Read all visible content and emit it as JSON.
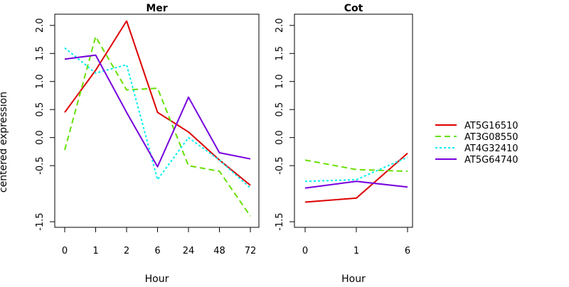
{
  "figure": {
    "ylabel": "centered expression",
    "legend_placement": "right"
  },
  "chart_data": [
    {
      "type": "line",
      "title": "Mer",
      "xlabel": "Hour",
      "ylabel": "centered expression",
      "categories": [
        "0",
        "1",
        "2",
        "6",
        "24",
        "48",
        "72"
      ],
      "ylim": [
        -1.6,
        2.2
      ],
      "yticks": [
        "-1.5",
        "-0.5",
        "0.0",
        "0.5",
        "1.0",
        "1.5",
        "2.0"
      ],
      "ytick_values": [
        -1.5,
        -0.5,
        0.0,
        0.5,
        1.0,
        1.5,
        2.0
      ],
      "grid": false,
      "series": [
        {
          "name": "AT5G16510",
          "values": [
            0.45,
            1.2,
            2.08,
            0.45,
            0.1,
            -0.4,
            -0.85
          ]
        },
        {
          "name": "AT3G08550",
          "values": [
            -0.22,
            1.8,
            0.85,
            0.88,
            -0.5,
            -0.6,
            -1.4
          ]
        },
        {
          "name": "AT4G32410",
          "values": [
            1.6,
            1.15,
            1.3,
            -0.75,
            0.0,
            -0.4,
            -0.9
          ]
        },
        {
          "name": "AT5G64740",
          "values": [
            1.4,
            1.47,
            0.45,
            -0.52,
            0.72,
            -0.27,
            -0.38
          ]
        }
      ]
    },
    {
      "type": "line",
      "title": "Cot",
      "xlabel": "Hour",
      "categories": [
        "0",
        "1",
        "6"
      ],
      "ylim": [
        -1.6,
        2.2
      ],
      "yticks": [
        "-1.5",
        "-0.5",
        "0.0",
        "0.5",
        "1.0",
        "1.5",
        "2.0"
      ],
      "ytick_values": [
        -1.5,
        -0.5,
        0.0,
        0.5,
        1.0,
        1.5,
        2.0
      ],
      "grid": false,
      "series": [
        {
          "name": "AT5G16510",
          "values": [
            -1.15,
            -1.08,
            -0.28
          ]
        },
        {
          "name": "AT3G08550",
          "values": [
            -0.4,
            -0.57,
            -0.6
          ]
        },
        {
          "name": "AT4G32410",
          "values": [
            -0.78,
            -0.75,
            -0.35
          ]
        },
        {
          "name": "AT5G64740",
          "values": [
            -0.9,
            -0.78,
            -0.88
          ]
        }
      ]
    }
  ],
  "legend": {
    "placement": "right",
    "entries": [
      {
        "name": "AT5G16510",
        "color": "#dd0000",
        "dash": "solid"
      },
      {
        "name": "AT3G08550",
        "color": "#66e000",
        "dash": "dashed"
      },
      {
        "name": "AT4G32410",
        "color": "#00eeee",
        "dash": "dotted"
      },
      {
        "name": "AT5G64740",
        "color": "#7700dd",
        "dash": "solid"
      }
    ]
  }
}
